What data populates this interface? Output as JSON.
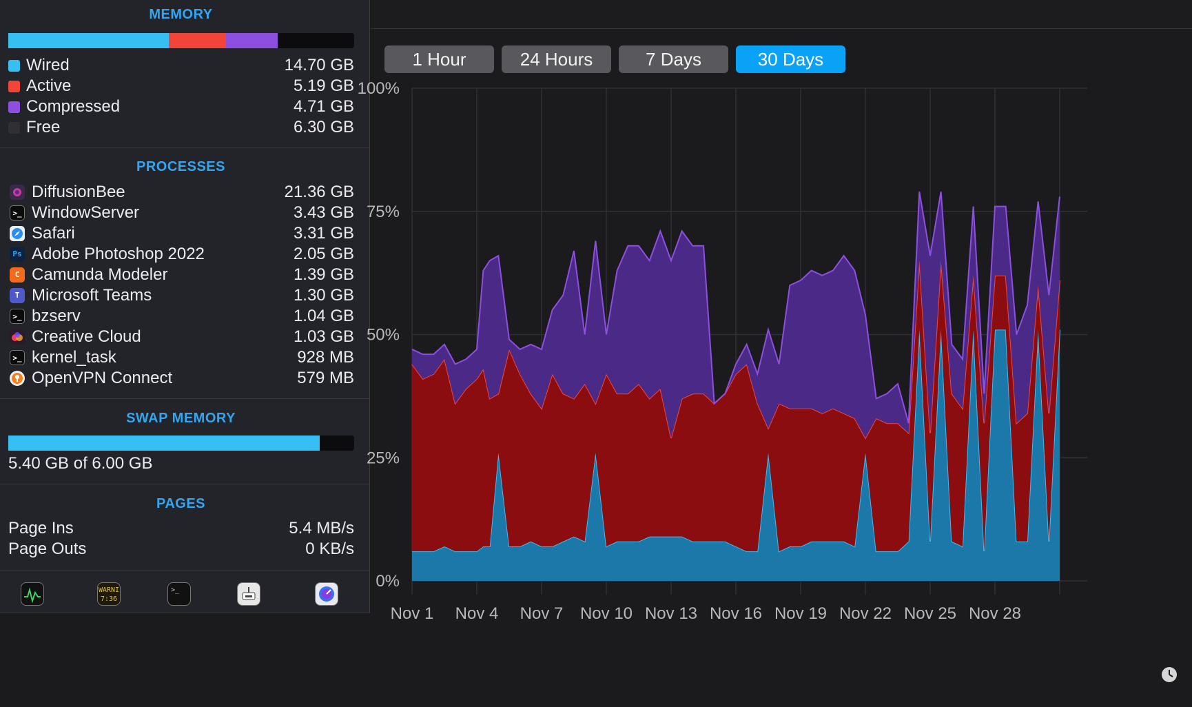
{
  "memory": {
    "title": "MEMORY",
    "rows": [
      {
        "label": "Wired",
        "value": "14.70 GB",
        "color": "#35bff2"
      },
      {
        "label": "Active",
        "value": "5.19 GB",
        "color": "#f2453a"
      },
      {
        "label": "Compressed",
        "value": "4.71 GB",
        "color": "#8c4fe0"
      },
      {
        "label": "Free",
        "value": "6.30 GB",
        "color": "#2f2f34"
      }
    ],
    "bar_fractions": {
      "wired": 0.465,
      "active": 0.164,
      "compressed": 0.149
    }
  },
  "processes": {
    "title": "PROCESSES",
    "items": [
      {
        "name": "DiffusionBee",
        "value": "21.36 GB",
        "icon": "diffusionbee-icon"
      },
      {
        "name": "WindowServer",
        "value": "3.43 GB",
        "icon": "terminal-icon"
      },
      {
        "name": "Safari",
        "value": "3.31 GB",
        "icon": "safari-icon"
      },
      {
        "name": "Adobe Photoshop 2022",
        "value": "2.05 GB",
        "icon": "photoshop-icon",
        "icon_text": "Ps"
      },
      {
        "name": "Camunda Modeler",
        "value": "1.39 GB",
        "icon": "camunda-icon",
        "icon_text": "C"
      },
      {
        "name": "Microsoft Teams",
        "value": "1.30 GB",
        "icon": "teams-icon",
        "icon_text": "T"
      },
      {
        "name": "bzserv",
        "value": "1.04 GB",
        "icon": "terminal-icon"
      },
      {
        "name": "Creative Cloud",
        "value": "1.03 GB",
        "icon": "creative-cloud-icon"
      },
      {
        "name": "kernel_task",
        "value": "928 MB",
        "icon": "terminal-icon"
      },
      {
        "name": "OpenVPN Connect",
        "value": "579 MB",
        "icon": "openvpn-icon"
      }
    ]
  },
  "swap": {
    "title": "SWAP MEMORY",
    "used_fraction": 0.9,
    "summary": "5.40 GB of 6.00 GB"
  },
  "pages": {
    "title": "PAGES",
    "rows": [
      {
        "label": "Page Ins",
        "value": "5.4 MB/s"
      },
      {
        "label": "Page Outs",
        "value": "0 KB/s"
      }
    ]
  },
  "dock": {
    "icons": [
      "activity-monitor-icon",
      "console-icon",
      "terminal-icon",
      "network-icon",
      "istat-icon"
    ],
    "console_text": "WARNI 7:36"
  },
  "time_range": {
    "buttons": [
      "1 Hour",
      "24 Hours",
      "7 Days",
      "30 Days"
    ],
    "selected": "30 Days"
  },
  "colors": {
    "wired": "#35bff2",
    "active": "#f2453a",
    "compressed": "#8c4fe0",
    "accent": "#0aa2f6"
  },
  "chart_data": {
    "type": "area",
    "stacked": true,
    "y_ticks": [
      "100%",
      "75%",
      "50%",
      "25%",
      "0%"
    ],
    "ylim": [
      0,
      100
    ],
    "x_ticks": [
      "Nov 1",
      "Nov 4",
      "Nov 7",
      "Nov 10",
      "Nov 13",
      "Nov 16",
      "Nov 19",
      "Nov 22",
      "Nov 25",
      "Nov 28"
    ],
    "x_days": [
      1,
      4,
      7,
      10,
      13,
      16,
      19,
      22,
      25,
      28
    ],
    "xlim": [
      1,
      31
    ],
    "grid": true,
    "x": [
      1,
      1.5,
      2,
      2.5,
      3,
      3.5,
      4,
      4.3,
      4.6,
      5,
      5.5,
      6,
      6.5,
      7,
      7.5,
      8,
      8.5,
      9,
      9.5,
      10,
      10.5,
      11,
      11.5,
      12,
      12.5,
      13,
      13.5,
      14,
      14.5,
      15,
      15.5,
      16,
      16.5,
      17,
      17.5,
      18,
      18.5,
      19,
      19.5,
      20,
      20.5,
      21,
      21.5,
      22,
      22.5,
      23,
      23.5,
      24,
      24.5,
      25,
      25.5,
      26,
      26.5,
      27,
      27.5,
      28,
      28.5,
      29,
      29.5,
      30,
      30.5,
      31
    ],
    "series": [
      {
        "name": "Wired",
        "color": "#1c78a8",
        "line": "#35bff2",
        "values": [
          6,
          6,
          6,
          7,
          6,
          6,
          6,
          7,
          7,
          26,
          7,
          7,
          8,
          7,
          7,
          8,
          9,
          8,
          26,
          7,
          8,
          8,
          8,
          9,
          9,
          9,
          9,
          8,
          8,
          8,
          8,
          7,
          6,
          6,
          26,
          6,
          7,
          7,
          8,
          8,
          8,
          8,
          7,
          26,
          6,
          6,
          6,
          8,
          51,
          8,
          51,
          8,
          7,
          51,
          6,
          51,
          51,
          8,
          8,
          51,
          8,
          51
        ]
      },
      {
        "name": "Active",
        "color": "#8b0d10",
        "line": "#f2453a",
        "values": [
          38,
          35,
          36,
          38,
          30,
          33,
          35,
          36,
          30,
          12,
          40,
          35,
          30,
          28,
          35,
          30,
          28,
          32,
          10,
          35,
          30,
          30,
          32,
          28,
          30,
          20,
          28,
          30,
          30,
          28,
          30,
          35,
          38,
          30,
          5,
          30,
          28,
          28,
          27,
          26,
          27,
          26,
          26,
          3,
          27,
          26,
          26,
          22,
          14,
          22,
          14,
          30,
          28,
          11,
          26,
          11,
          11,
          24,
          26,
          9,
          26,
          10
        ]
      },
      {
        "name": "Compressed",
        "color": "#4a2a86",
        "line": "#8c4fe0",
        "values": [
          3,
          5,
          4,
          3,
          8,
          6,
          6,
          20,
          28,
          28,
          2,
          5,
          10,
          12,
          13,
          20,
          30,
          10,
          33,
          8,
          25,
          30,
          28,
          28,
          32,
          36,
          34,
          30,
          30,
          0,
          0,
          2,
          4,
          6,
          20,
          8,
          25,
          26,
          28,
          28,
          28,
          32,
          30,
          25,
          4,
          6,
          8,
          2,
          14,
          36,
          14,
          10,
          10,
          14,
          6,
          14,
          14,
          18,
          22,
          17,
          24,
          17
        ]
      }
    ]
  }
}
